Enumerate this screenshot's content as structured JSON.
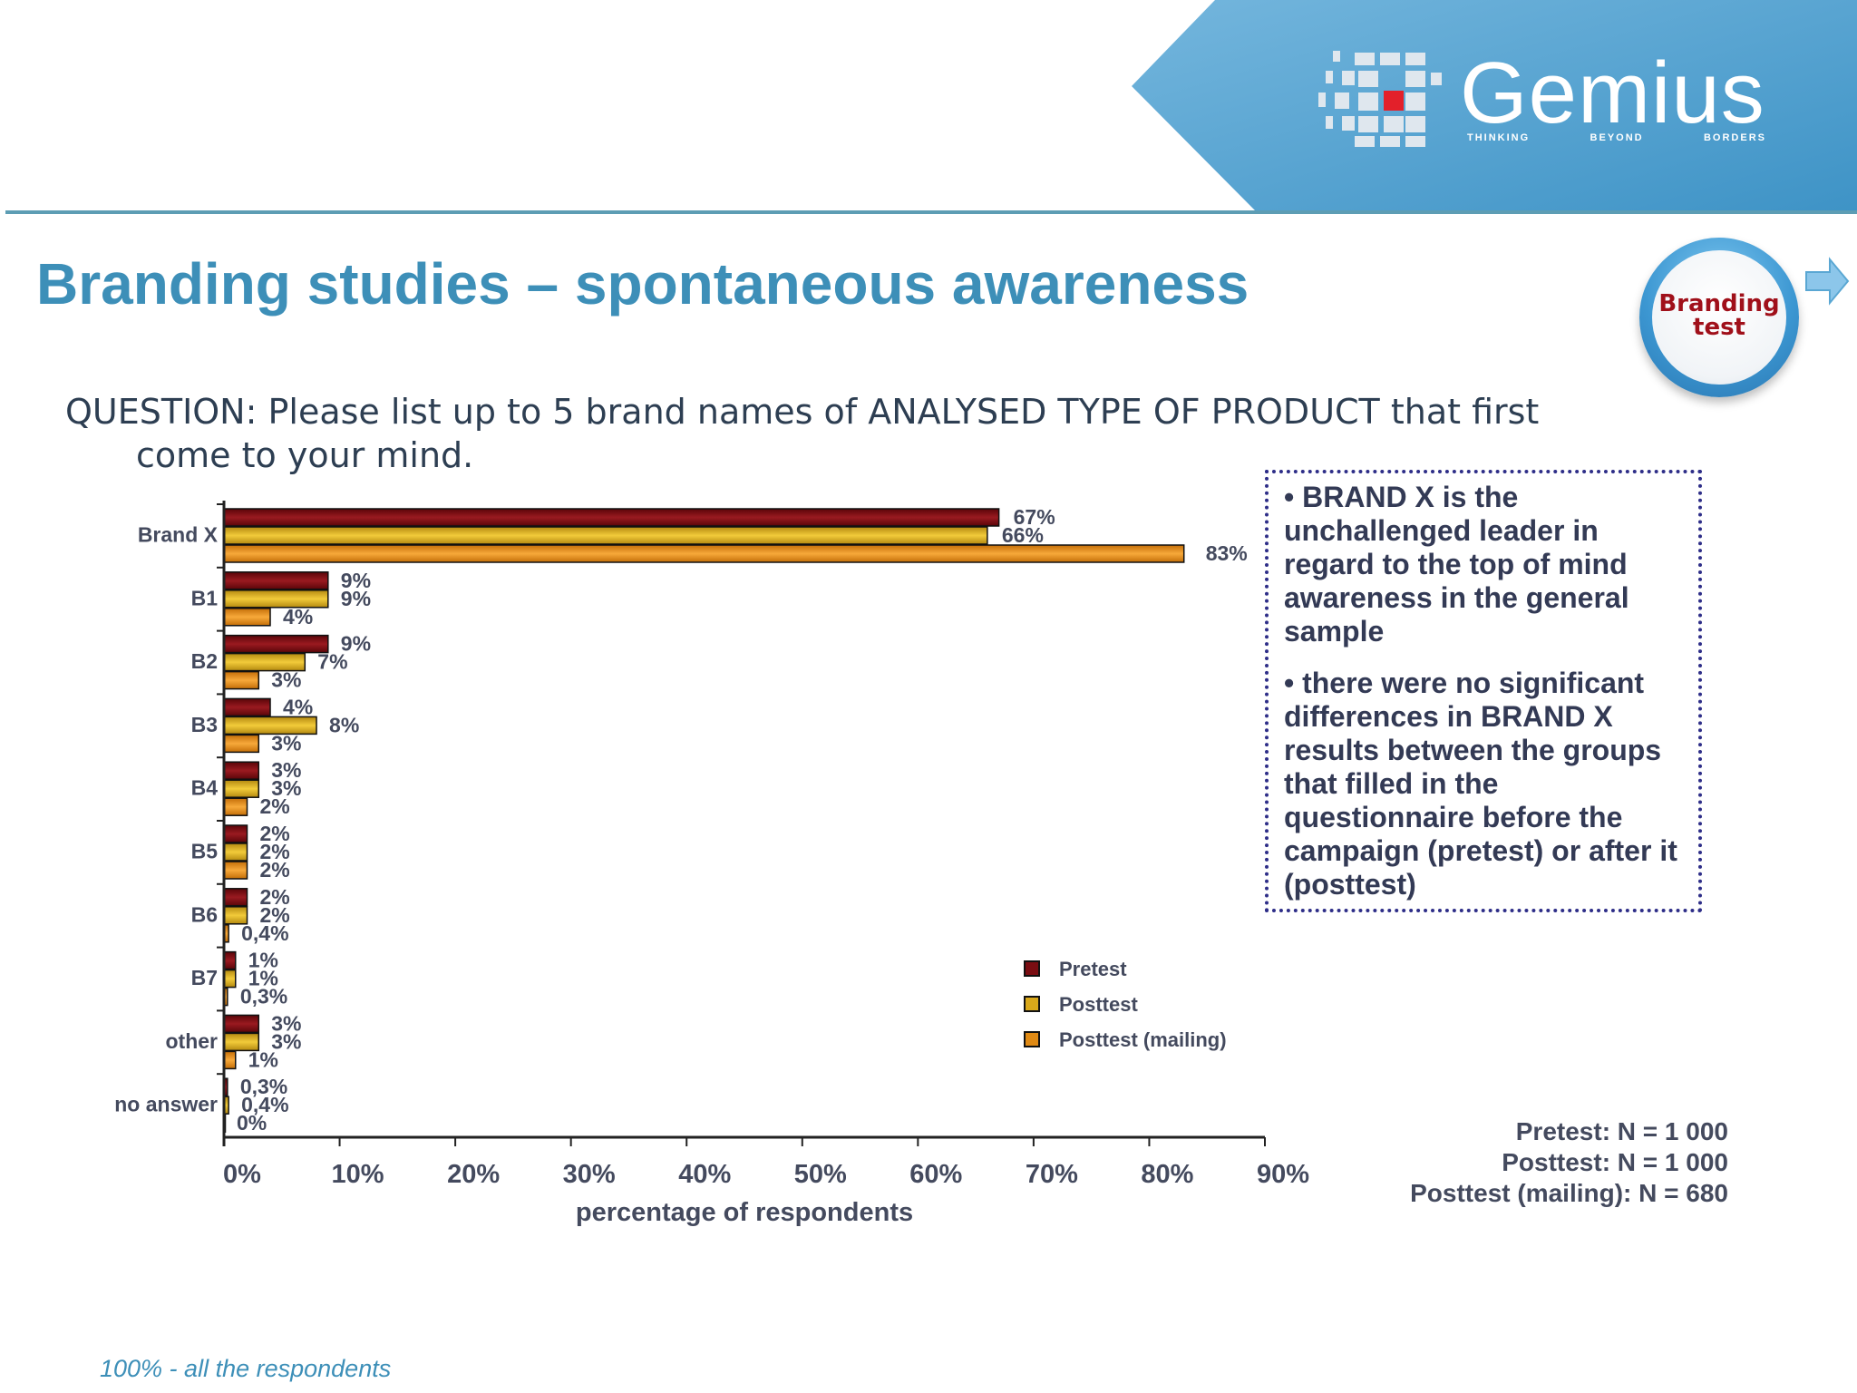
{
  "logo": {
    "name": "Gemius",
    "tagline": [
      "THINKING",
      "BEYOND",
      "BORDERS"
    ]
  },
  "title": "Branding studies – spontaneous awareness",
  "badge": {
    "line1": "Branding",
    "line2": "test"
  },
  "question": {
    "line1": "QUESTION: Please list up to 5 brand names of ANALYSED TYPE OF PRODUCT that first",
    "line2": "come to your mind."
  },
  "insights": [
    "• BRAND X is the unchallenged leader in regard to the top of mind awareness in the general sample",
    "• there were no significant differences in BRAND X results between the groups that filled in the questionnaire before  the campaign (pretest) or after it (posttest)"
  ],
  "sample_sizes": [
    "Pretest: N = 1 000",
    "Posttest: N = 1 000",
    "Posttest (mailing): N = 680"
  ],
  "footnote": "100% - all the respondents",
  "colors": {
    "accent": "#3d8fb8",
    "header_blue": "#5aa7d3",
    "pretest": "#7a0d12",
    "posttest": "#d9a81a",
    "posttest_mailing": "#e08a14",
    "text_dark": "#444a5e"
  },
  "chart_data": {
    "type": "bar",
    "orientation": "horizontal",
    "categories": [
      "Brand X",
      "B1",
      "B2",
      "B3",
      "B4",
      "B5",
      "B6",
      "B7",
      "other",
      "no answer"
    ],
    "series": [
      {
        "name": "Pretest",
        "values": [
          67,
          9,
          9,
          4,
          3,
          2,
          2,
          1,
          3,
          0.3
        ],
        "labels": [
          "67%",
          "9%",
          "9%",
          "4%",
          "3%",
          "2%",
          "2%",
          "1%",
          "3%",
          "0,3%"
        ]
      },
      {
        "name": "Posttest",
        "values": [
          66,
          9,
          7,
          8,
          3,
          2,
          2,
          1,
          3,
          0.4
        ],
        "labels": [
          "66%",
          "9%",
          "7%",
          "8%",
          "3%",
          "2%",
          "2%",
          "1%",
          "3%",
          "0,4%"
        ]
      },
      {
        "name": "Posttest (mailing)",
        "values": [
          83,
          4,
          3,
          3,
          2,
          2,
          0.4,
          0.3,
          1,
          0
        ],
        "labels": [
          "83%",
          "4%",
          "3%",
          "3%",
          "2%",
          "2%",
          "0,4%",
          "0,3%",
          "1%",
          "0%"
        ]
      }
    ],
    "xlabel": "percentage of respondents",
    "xlim": [
      0,
      90
    ],
    "xticks": [
      "0%",
      "10%",
      "20%",
      "30%",
      "40%",
      "50%",
      "60%",
      "70%",
      "80%",
      "90%"
    ],
    "legend_position": "right"
  }
}
